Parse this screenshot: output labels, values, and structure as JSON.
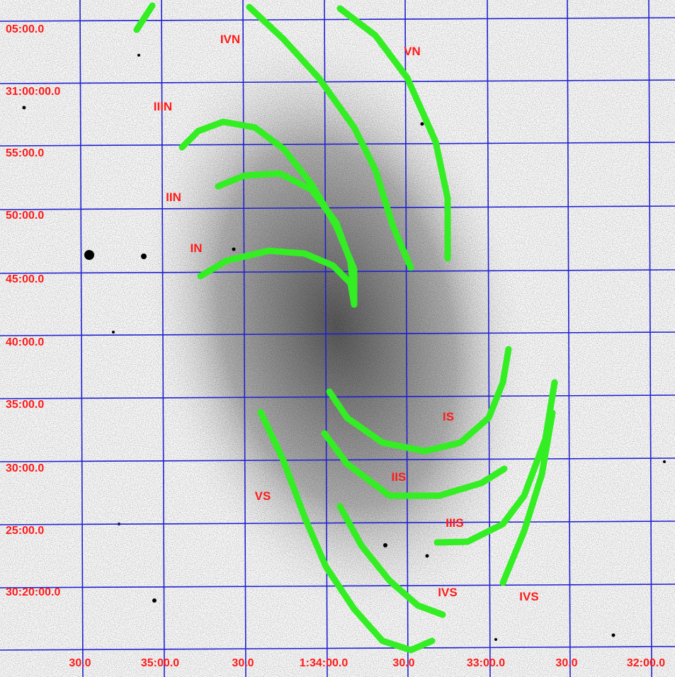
{
  "axes": {
    "y_labels": [
      "05:00.0",
      "31:00:00.0",
      "55:00.0",
      "50:00.0",
      "45:00.0",
      "40:00.0",
      "35:00.0",
      "30:00.0",
      "25:00.0",
      "30:20:00.0"
    ],
    "x_labels": [
      "30.0",
      "35:00.0",
      "30.0",
      "1:34:00.0",
      "30.0",
      "33:00.0",
      "30.0",
      "32:00.0"
    ]
  },
  "arms": [
    {
      "label": "IVN"
    },
    {
      "label": "VN"
    },
    {
      "label": "IIIN"
    },
    {
      "label": "IIN"
    },
    {
      "label": "IN"
    },
    {
      "label": "IS"
    },
    {
      "label": "IIS"
    },
    {
      "label": "VS"
    },
    {
      "label": "IIIS"
    },
    {
      "label": "IVS"
    },
    {
      "label": "IVS"
    }
  ]
}
